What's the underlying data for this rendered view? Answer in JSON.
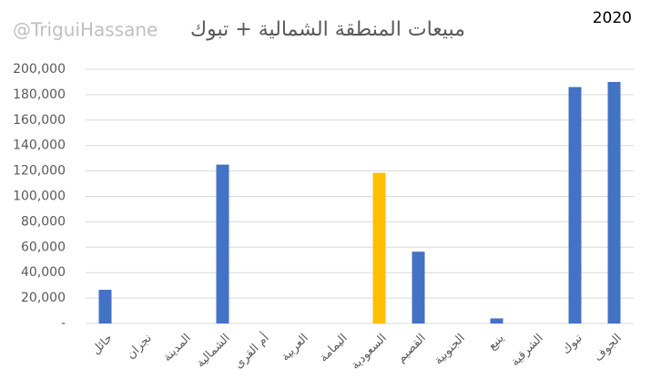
{
  "chart_data": {
    "type": "bar",
    "title": "مبيعات المنطقة الشمالية + تبوك",
    "watermark": "@TriguiHassane",
    "year_label": "2020",
    "categories": [
      "حائل",
      "نجران",
      "المدينة",
      "الشمالية",
      "أم القرى",
      "العربية",
      "اليمامة",
      "السعودية",
      "القصيم",
      "الجنوبية",
      "ينبع",
      "الشرقية",
      "تبوك",
      "الجوف"
    ],
    "values": [
      26500,
      0,
      0,
      125000,
      0,
      0,
      0,
      118500,
      56500,
      0,
      4000,
      0,
      186000,
      190000
    ],
    "colors": [
      "#4472c4",
      "#4472c4",
      "#4472c4",
      "#4472c4",
      "#4472c4",
      "#4472c4",
      "#4472c4",
      "#ffc000",
      "#4472c4",
      "#4472c4",
      "#4472c4",
      "#4472c4",
      "#4472c4",
      "#4472c4"
    ],
    "ylim": [
      0,
      200000
    ],
    "yticks": [
      {
        "value": 0,
        "label": "-"
      },
      {
        "value": 20000,
        "label": "20,000"
      },
      {
        "value": 40000,
        "label": "40,000"
      },
      {
        "value": 60000,
        "label": "60,000"
      },
      {
        "value": 80000,
        "label": "80,000"
      },
      {
        "value": 100000,
        "label": "100,000"
      },
      {
        "value": 120000,
        "label": "120,000"
      },
      {
        "value": 140000,
        "label": "140,000"
      },
      {
        "value": 160000,
        "label": "160,000"
      },
      {
        "value": 180000,
        "label": "180,000"
      },
      {
        "value": 200000,
        "label": "200,000"
      }
    ],
    "grid": true
  }
}
